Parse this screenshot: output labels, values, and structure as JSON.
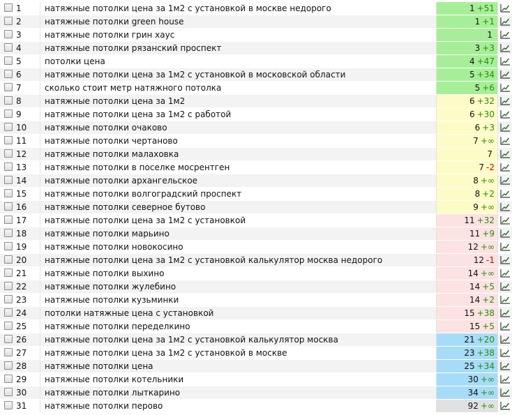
{
  "rows": [
    {
      "num": "1",
      "keyword": "натяжные потолки цена за 1м2 с установкой в москве недорого",
      "pos": "1",
      "delta": "+51",
      "group": "green"
    },
    {
      "num": "2",
      "keyword": "натяжные потолки green house",
      "pos": "1",
      "delta": "+1",
      "group": "green"
    },
    {
      "num": "3",
      "keyword": "натяжные потолки грин хаус",
      "pos": "1",
      "delta": "",
      "group": "green"
    },
    {
      "num": "4",
      "keyword": "натяжные потолки рязанский проспект",
      "pos": "3",
      "delta": "+3",
      "group": "green"
    },
    {
      "num": "5",
      "keyword": "потолки цена",
      "pos": "4",
      "delta": "+47",
      "group": "green"
    },
    {
      "num": "6",
      "keyword": "натяжные потолки цена за 1м2 с установкой в московской области",
      "pos": "5",
      "delta": "+34",
      "group": "green"
    },
    {
      "num": "7",
      "keyword": "сколько стоит метр натяжного потолка",
      "pos": "5",
      "delta": "+6",
      "group": "green"
    },
    {
      "num": "8",
      "keyword": "натяжные потолки цена за 1м2",
      "pos": "6",
      "delta": "+32",
      "group": "yellow"
    },
    {
      "num": "9",
      "keyword": "натяжные потолки цена за 1м2 с работой",
      "pos": "6",
      "delta": "+30",
      "group": "yellow"
    },
    {
      "num": "10",
      "keyword": "натяжные потолки очаково",
      "pos": "6",
      "delta": "+3",
      "group": "yellow"
    },
    {
      "num": "11",
      "keyword": "натяжные потолки чертаново",
      "pos": "7",
      "delta": "+∞",
      "group": "yellow"
    },
    {
      "num": "12",
      "keyword": "натяжные потолки  малаховка",
      "pos": "7",
      "delta": "",
      "group": "yellow"
    },
    {
      "num": "13",
      "keyword": "натяжные потолки в поселке мосрентген",
      "pos": "7",
      "delta": "-2",
      "group": "yellow"
    },
    {
      "num": "14",
      "keyword": "натяжные потолки  архангельское",
      "pos": "8",
      "delta": "+∞",
      "group": "yellow"
    },
    {
      "num": "15",
      "keyword": "натяжные потолки волгоградский проспект",
      "pos": "8",
      "delta": "+2",
      "group": "yellow"
    },
    {
      "num": "16",
      "keyword": "натяжные потолки северное бутово",
      "pos": "9",
      "delta": "+∞",
      "group": "yellow"
    },
    {
      "num": "17",
      "keyword": "натяжные потолки цена за 1м2 с установкой",
      "pos": "11",
      "delta": "+32",
      "group": "pink"
    },
    {
      "num": "18",
      "keyword": "натяжные потолки марьино",
      "pos": "11",
      "delta": "+9",
      "group": "pink"
    },
    {
      "num": "19",
      "keyword": "натяжные потолки новокосино",
      "pos": "12",
      "delta": "+∞",
      "group": "pink"
    },
    {
      "num": "20",
      "keyword": "натяжные потолки цена за 1м2 с установкой калькулятор москва недорого",
      "pos": "12",
      "delta": "-1",
      "group": "pink"
    },
    {
      "num": "21",
      "keyword": "натяжные потолки выхино",
      "pos": "14",
      "delta": "+∞",
      "group": "pink"
    },
    {
      "num": "22",
      "keyword": "натяжные потолки жулебино",
      "pos": "14",
      "delta": "+5",
      "group": "pink"
    },
    {
      "num": "23",
      "keyword": "натяжные потолки кузьминки",
      "pos": "14",
      "delta": "+2",
      "group": "pink"
    },
    {
      "num": "24",
      "keyword": "потолки натяжные цена с установкой",
      "pos": "15",
      "delta": "+38",
      "group": "pink"
    },
    {
      "num": "25",
      "keyword": "натяжные потолки переделкино",
      "pos": "15",
      "delta": "+5",
      "group": "pink"
    },
    {
      "num": "26",
      "keyword": "натяжные потолки цена за 1м2 с установкой калькулятор москва",
      "pos": "21",
      "delta": "+20",
      "group": "blue"
    },
    {
      "num": "27",
      "keyword": "натяжные потолки цена за 1м2 с установкой в москве",
      "pos": "23",
      "delta": "+38",
      "group": "blue"
    },
    {
      "num": "28",
      "keyword": "натяжные потолки цена",
      "pos": "25",
      "delta": "+34",
      "group": "blue"
    },
    {
      "num": "29",
      "keyword": "натяжные потолки котельники",
      "pos": "30",
      "delta": "+∞",
      "group": "blue"
    },
    {
      "num": "30",
      "keyword": "натяжные потолки лыткарино",
      "pos": "34",
      "delta": "+∞",
      "group": "blue"
    },
    {
      "num": "31",
      "keyword": "натяжные потолки перово",
      "pos": "92",
      "delta": "+∞",
      "group": "gray"
    }
  ],
  "icons": {
    "row_checkbox": "checkbox",
    "row_chart": "line-chart-icon"
  },
  "colors": {
    "green": "#a6ef98",
    "yellow": "#fdfcc6",
    "pink": "#fde2e2",
    "blue": "#a6dcf7",
    "gray": "#e1e1e1",
    "delta_up": "#2a8a10",
    "delta_down": "#d10000"
  }
}
